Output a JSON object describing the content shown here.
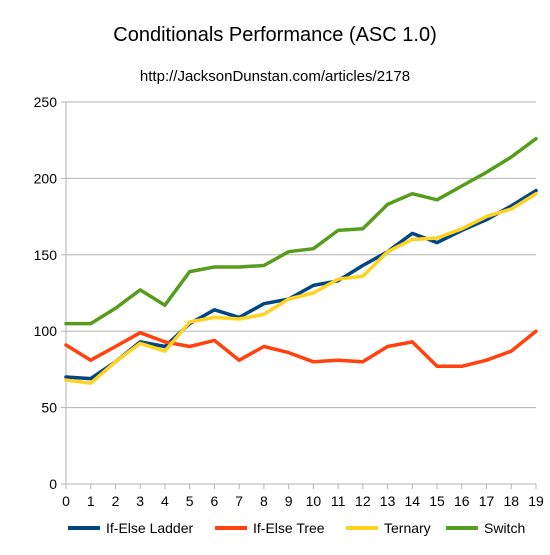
{
  "chart_data": {
    "type": "line",
    "title": "Conditionals Performance (ASC 1.0)",
    "subtitle": "http://JacksonDunstan.com/articles/2178",
    "xlabel": "",
    "ylabel": "",
    "x": [
      0,
      1,
      2,
      3,
      4,
      5,
      6,
      7,
      8,
      9,
      10,
      11,
      12,
      13,
      14,
      15,
      16,
      17,
      18,
      19
    ],
    "ylim": [
      0,
      250
    ],
    "yticks": [
      0,
      50,
      100,
      150,
      200,
      250
    ],
    "grid": true,
    "legend": "bottom",
    "series": [
      {
        "name": "If-Else Ladder",
        "color": "#004586",
        "values": [
          70,
          69,
          80,
          93,
          90,
          105,
          114,
          109,
          118,
          121,
          130,
          133,
          143,
          152,
          164,
          158,
          166,
          173,
          182,
          192
        ]
      },
      {
        "name": "If-Else Tree",
        "color": "#ff420e",
        "values": [
          91,
          81,
          90,
          99,
          93,
          90,
          94,
          81,
          90,
          86,
          80,
          81,
          80,
          90,
          93,
          77,
          77,
          81,
          87,
          100
        ]
      },
      {
        "name": "Ternary",
        "color": "#ffd320",
        "values": [
          68,
          66,
          80,
          92,
          87,
          106,
          109,
          108,
          111,
          121,
          125,
          134,
          136,
          152,
          160,
          161,
          167,
          175,
          180,
          190
        ]
      },
      {
        "name": "Switch",
        "color": "#579d1c",
        "values": [
          105,
          105,
          115,
          127,
          117,
          139,
          142,
          142,
          143,
          152,
          154,
          166,
          167,
          183,
          190,
          186,
          195,
          204,
          214,
          226
        ]
      }
    ]
  }
}
